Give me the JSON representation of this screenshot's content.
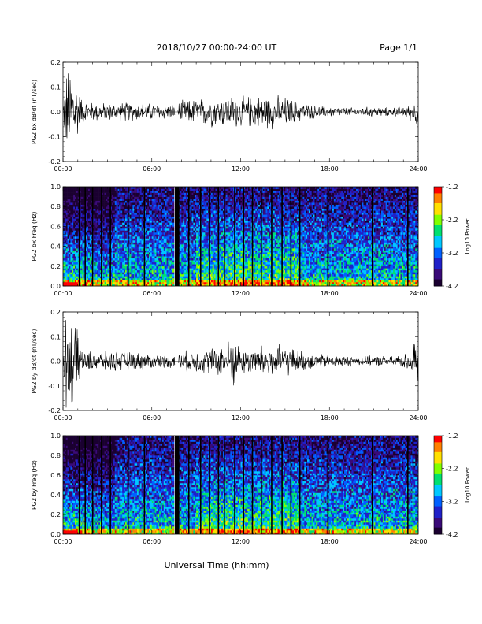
{
  "header": {
    "title": "2018/10/27   00:00-24:00 UT",
    "page": "Page 1/1"
  },
  "colors": {
    "trace": "#000000",
    "colormap": [
      "#1a0030",
      "#3a0a78",
      "#2020c8",
      "#0060ff",
      "#00c8ff",
      "#00e070",
      "#80ff00",
      "#ffe000",
      "#ff8000",
      "#ff0000"
    ]
  },
  "xaxis": {
    "label": "Universal Time (hh:mm)",
    "ticks": [
      "00:00",
      "06:00",
      "12:00",
      "18:00",
      "24:00"
    ],
    "range_hours": [
      0,
      24
    ]
  },
  "chart_data": [
    {
      "type": "line",
      "ylabel": "PG2 bx dB/dt (nT/sec)",
      "ylim": [
        -0.2,
        0.2
      ],
      "yticks": [
        "0.2",
        "0.1",
        "0.0",
        "-0.1",
        "-0.2"
      ],
      "x_hours_range": [
        0,
        24
      ],
      "gap_hours": [
        [
          7.55,
          7.75
        ]
      ],
      "envelope": {
        "hours": [
          0,
          0.2,
          0.4,
          0.6,
          0.8,
          1.0,
          1.3,
          1.6,
          2.0,
          3.0,
          4.0,
          5.0,
          6.0,
          7.0,
          7.5,
          8.0,
          9.0,
          10.0,
          11.0,
          11.5,
          12.0,
          13.0,
          14.0,
          15.0,
          16.0,
          17.0,
          18.0,
          19.0,
          20.0,
          21.0,
          22.0,
          23.0,
          23.5,
          23.8,
          24.0
        ],
        "amplitude": [
          0.02,
          0.2,
          0.2,
          0.2,
          0.2,
          0.12,
          0.06,
          0.05,
          0.045,
          0.04,
          0.045,
          0.04,
          0.04,
          0.035,
          0.035,
          0.05,
          0.06,
          0.07,
          0.07,
          0.075,
          0.07,
          0.075,
          0.08,
          0.07,
          0.045,
          0.03,
          0.025,
          0.02,
          0.02,
          0.025,
          0.02,
          0.025,
          0.04,
          0.06,
          0.07
        ]
      }
    },
    {
      "type": "heatmap",
      "ylabel": "PG2 bx Freq (Hz)",
      "ylim": [
        0.0,
        1.0
      ],
      "yticks": [
        "1.0",
        "0.8",
        "0.6",
        "0.4",
        "0.2",
        "0.0"
      ],
      "colorbar": {
        "label": "Log10 Power",
        "range": [
          -4.2,
          -1.2
        ],
        "ticks": [
          "-1.2",
          "-2.2",
          "-3.2",
          "-4.2"
        ]
      },
      "gap_hours": [
        [
          7.55,
          7.75
        ]
      ],
      "vertical_lines_hours": [
        1.1,
        1.5,
        2.0,
        2.6,
        3.2,
        4.4,
        5.5,
        7.8,
        8.5,
        9.3,
        9.9,
        10.5,
        10.9,
        11.6,
        12.2,
        12.8,
        13.4,
        14.1,
        14.8,
        15.4,
        16.0,
        17.9,
        20.9,
        23.3
      ]
    },
    {
      "type": "line",
      "ylabel": "PG2 by dB/dt (nT/sec)",
      "ylim": [
        -0.2,
        0.2
      ],
      "yticks": [
        "0.2",
        "0.1",
        "0.0",
        "-0.1",
        "-0.2"
      ],
      "x_hours_range": [
        0,
        24
      ],
      "gap_hours": [
        [
          7.55,
          7.75
        ]
      ],
      "envelope": {
        "hours": [
          0,
          0.2,
          0.4,
          0.6,
          0.8,
          1.0,
          1.3,
          1.6,
          2.0,
          3.0,
          4.0,
          5.0,
          6.0,
          7.0,
          7.5,
          8.0,
          9.0,
          10.0,
          11.0,
          11.5,
          12.0,
          13.0,
          14.0,
          15.0,
          16.0,
          17.0,
          18.0,
          19.0,
          20.0,
          21.0,
          22.0,
          23.0,
          23.5,
          23.8,
          24.0
        ],
        "amplitude": [
          0.02,
          0.2,
          0.2,
          0.2,
          0.19,
          0.12,
          0.07,
          0.05,
          0.045,
          0.045,
          0.045,
          0.04,
          0.035,
          0.03,
          0.03,
          0.045,
          0.05,
          0.06,
          0.08,
          0.13,
          0.06,
          0.07,
          0.08,
          0.07,
          0.05,
          0.035,
          0.03,
          0.025,
          0.02,
          0.025,
          0.025,
          0.03,
          0.06,
          0.12,
          0.1
        ]
      }
    },
    {
      "type": "heatmap",
      "ylabel": "PG2 by Freq (Hz)",
      "ylim": [
        0.0,
        1.0
      ],
      "yticks": [
        "1.0",
        "0.8",
        "0.6",
        "0.4",
        "0.2",
        "0.0"
      ],
      "colorbar": {
        "label": "Log10 Power",
        "range": [
          -4.2,
          -1.2
        ],
        "ticks": [
          "-1.2",
          "-2.2",
          "-3.2",
          "-4.2"
        ]
      },
      "gap_hours": [
        [
          7.55,
          7.75
        ]
      ],
      "vertical_lines_hours": [
        1.1,
        1.5,
        2.0,
        2.6,
        3.2,
        4.4,
        5.5,
        7.8,
        8.5,
        9.3,
        9.9,
        10.5,
        10.9,
        11.6,
        12.2,
        12.8,
        13.4,
        14.1,
        14.8,
        15.4,
        16.0,
        17.9,
        20.9,
        23.3
      ]
    }
  ]
}
